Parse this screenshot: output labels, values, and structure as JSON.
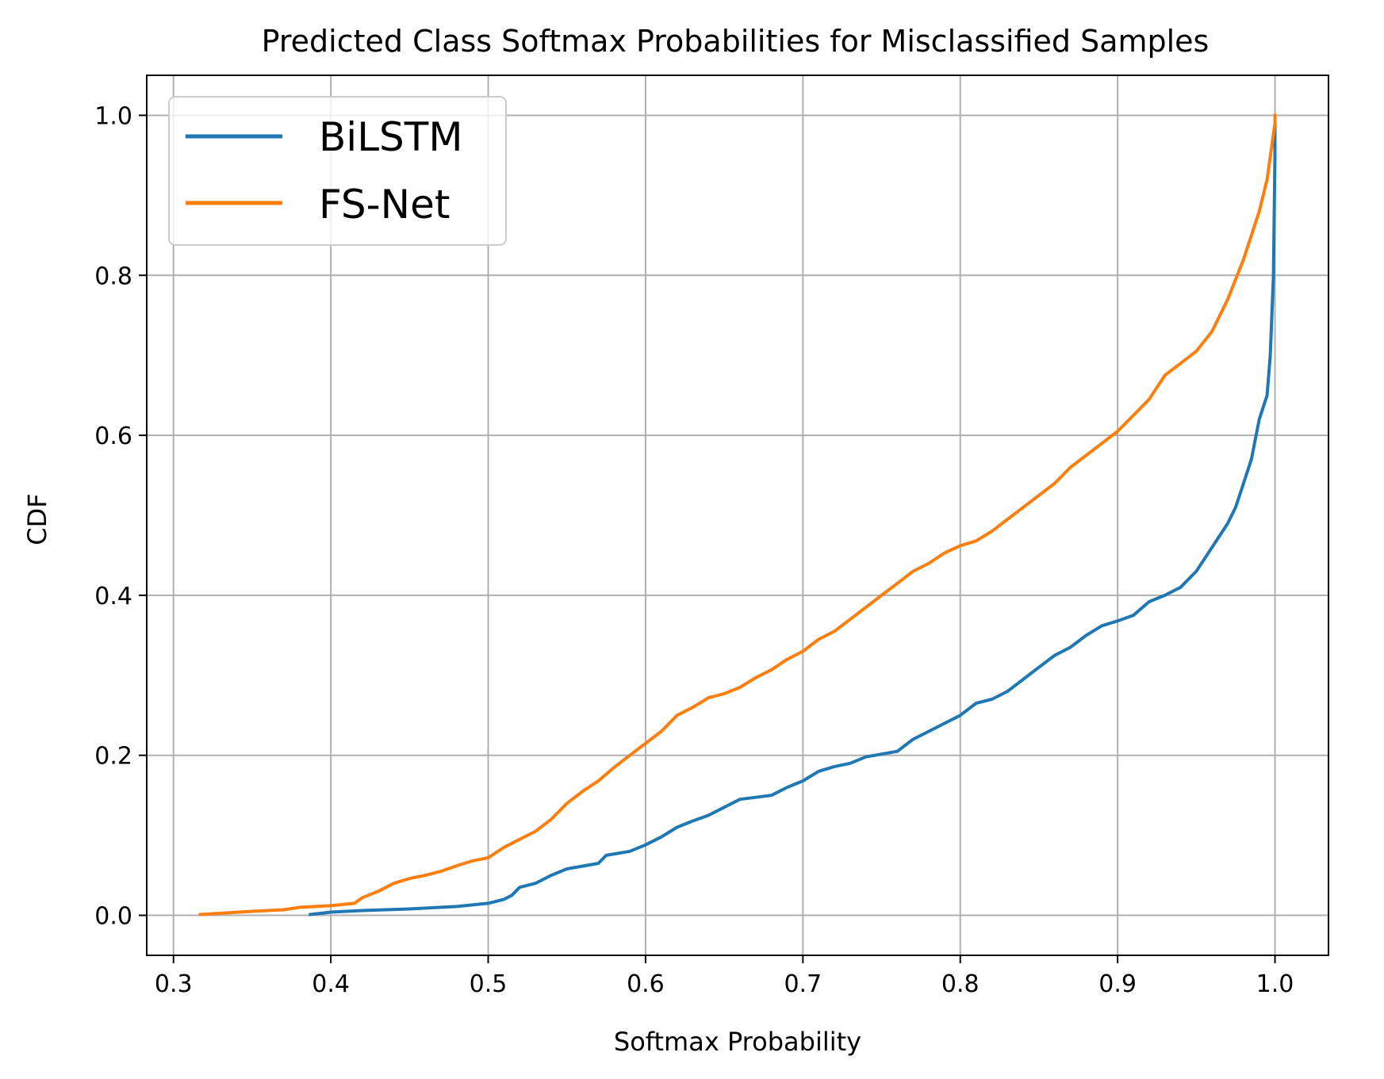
{
  "chart_data": {
    "type": "line",
    "title": "Predicted Class Softmax Probabilities for Misclassified Samples",
    "xlabel": "Softmax Probability",
    "ylabel": "CDF",
    "xlim": [
      0.283,
      1.034
    ],
    "ylim": [
      -0.05,
      1.05
    ],
    "xticks": [
      0.3,
      0.4,
      0.5,
      0.6,
      0.7,
      0.8,
      0.9,
      1.0
    ],
    "yticks": [
      0.0,
      0.2,
      0.4,
      0.6,
      0.8,
      1.0
    ],
    "xtick_labels": [
      "0.3",
      "0.4",
      "0.5",
      "0.6",
      "0.7",
      "0.8",
      "0.9",
      "1.0"
    ],
    "ytick_labels": [
      "0.0",
      "0.2",
      "0.4",
      "0.6",
      "0.8",
      "1.0"
    ],
    "grid": true,
    "legend_position": "upper-left",
    "series": [
      {
        "name": "BiLSTM",
        "color": "#1f77b4",
        "points": [
          [
            0.387,
            0.001
          ],
          [
            0.4,
            0.004
          ],
          [
            0.42,
            0.006
          ],
          [
            0.45,
            0.008
          ],
          [
            0.48,
            0.011
          ],
          [
            0.5,
            0.015
          ],
          [
            0.51,
            0.02
          ],
          [
            0.515,
            0.025
          ],
          [
            0.52,
            0.035
          ],
          [
            0.53,
            0.04
          ],
          [
            0.54,
            0.05
          ],
          [
            0.55,
            0.058
          ],
          [
            0.57,
            0.065
          ],
          [
            0.575,
            0.075
          ],
          [
            0.59,
            0.08
          ],
          [
            0.6,
            0.088
          ],
          [
            0.61,
            0.098
          ],
          [
            0.62,
            0.11
          ],
          [
            0.63,
            0.118
          ],
          [
            0.64,
            0.125
          ],
          [
            0.65,
            0.135
          ],
          [
            0.66,
            0.145
          ],
          [
            0.68,
            0.15
          ],
          [
            0.69,
            0.16
          ],
          [
            0.7,
            0.168
          ],
          [
            0.71,
            0.18
          ],
          [
            0.72,
            0.186
          ],
          [
            0.73,
            0.19
          ],
          [
            0.74,
            0.198
          ],
          [
            0.76,
            0.205
          ],
          [
            0.77,
            0.22
          ],
          [
            0.78,
            0.23
          ],
          [
            0.79,
            0.24
          ],
          [
            0.8,
            0.25
          ],
          [
            0.81,
            0.265
          ],
          [
            0.82,
            0.27
          ],
          [
            0.83,
            0.28
          ],
          [
            0.84,
            0.295
          ],
          [
            0.85,
            0.31
          ],
          [
            0.86,
            0.325
          ],
          [
            0.87,
            0.335
          ],
          [
            0.88,
            0.35
          ],
          [
            0.89,
            0.362
          ],
          [
            0.9,
            0.368
          ],
          [
            0.91,
            0.375
          ],
          [
            0.92,
            0.392
          ],
          [
            0.93,
            0.4
          ],
          [
            0.94,
            0.41
          ],
          [
            0.95,
            0.43
          ],
          [
            0.96,
            0.46
          ],
          [
            0.97,
            0.49
          ],
          [
            0.975,
            0.51
          ],
          [
            0.98,
            0.54
          ],
          [
            0.985,
            0.57
          ],
          [
            0.99,
            0.62
          ],
          [
            0.995,
            0.65
          ],
          [
            0.997,
            0.7
          ],
          [
            0.999,
            0.8
          ],
          [
            1.0,
            0.95
          ],
          [
            1.0,
            1.0
          ]
        ]
      },
      {
        "name": "FS-Net",
        "color": "#ff7f0e",
        "points": [
          [
            0.317,
            0.001
          ],
          [
            0.35,
            0.005
          ],
          [
            0.37,
            0.007
          ],
          [
            0.38,
            0.01
          ],
          [
            0.4,
            0.012
          ],
          [
            0.415,
            0.015
          ],
          [
            0.42,
            0.022
          ],
          [
            0.43,
            0.03
          ],
          [
            0.44,
            0.04
          ],
          [
            0.45,
            0.046
          ],
          [
            0.46,
            0.05
          ],
          [
            0.47,
            0.055
          ],
          [
            0.48,
            0.062
          ],
          [
            0.49,
            0.068
          ],
          [
            0.5,
            0.072
          ],
          [
            0.51,
            0.085
          ],
          [
            0.52,
            0.095
          ],
          [
            0.53,
            0.105
          ],
          [
            0.54,
            0.12
          ],
          [
            0.55,
            0.14
          ],
          [
            0.56,
            0.155
          ],
          [
            0.57,
            0.168
          ],
          [
            0.58,
            0.185
          ],
          [
            0.59,
            0.2
          ],
          [
            0.6,
            0.215
          ],
          [
            0.61,
            0.23
          ],
          [
            0.62,
            0.25
          ],
          [
            0.63,
            0.26
          ],
          [
            0.64,
            0.272
          ],
          [
            0.65,
            0.277
          ],
          [
            0.66,
            0.285
          ],
          [
            0.67,
            0.297
          ],
          [
            0.68,
            0.307
          ],
          [
            0.69,
            0.32
          ],
          [
            0.7,
            0.33
          ],
          [
            0.71,
            0.345
          ],
          [
            0.72,
            0.355
          ],
          [
            0.73,
            0.37
          ],
          [
            0.74,
            0.385
          ],
          [
            0.75,
            0.4
          ],
          [
            0.76,
            0.415
          ],
          [
            0.77,
            0.43
          ],
          [
            0.78,
            0.44
          ],
          [
            0.79,
            0.453
          ],
          [
            0.8,
            0.462
          ],
          [
            0.81,
            0.468
          ],
          [
            0.82,
            0.48
          ],
          [
            0.83,
            0.495
          ],
          [
            0.84,
            0.51
          ],
          [
            0.85,
            0.525
          ],
          [
            0.86,
            0.54
          ],
          [
            0.87,
            0.56
          ],
          [
            0.88,
            0.575
          ],
          [
            0.89,
            0.59
          ],
          [
            0.9,
            0.605
          ],
          [
            0.91,
            0.625
          ],
          [
            0.92,
            0.645
          ],
          [
            0.93,
            0.675
          ],
          [
            0.94,
            0.69
          ],
          [
            0.95,
            0.705
          ],
          [
            0.96,
            0.73
          ],
          [
            0.97,
            0.77
          ],
          [
            0.98,
            0.82
          ],
          [
            0.99,
            0.88
          ],
          [
            0.995,
            0.92
          ],
          [
            1.0,
            0.99
          ],
          [
            1.0,
            1.0
          ]
        ]
      }
    ]
  }
}
